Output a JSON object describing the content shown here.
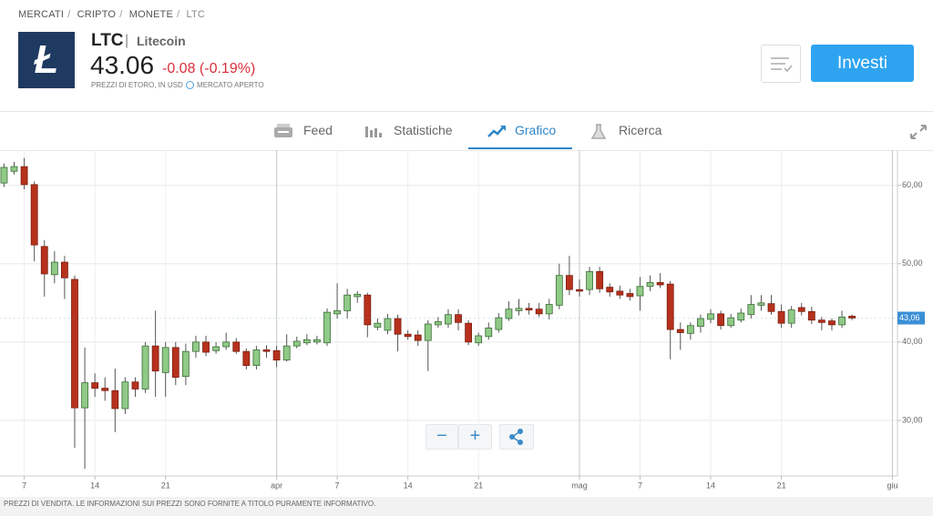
{
  "breadcrumb": {
    "items": [
      "MERCATI",
      "CRIPTO",
      "MONETE",
      "LTC"
    ],
    "separator": "/"
  },
  "instrument": {
    "symbol": "LTC",
    "separator": "|",
    "name": "Litecoin",
    "price": "43.06",
    "change": "-0.08 (-0.19%)",
    "source": "PREZZI DI ETORO, IN USD",
    "status": "MERCATO APERTO",
    "button": "Investi"
  },
  "tabs": [
    {
      "label": "Feed"
    },
    {
      "label": "Statistiche"
    },
    {
      "label": "Grafico",
      "active": true
    },
    {
      "label": "Ricerca"
    }
  ],
  "chart_data": {
    "type": "candlestick",
    "up_color": "#8fca86",
    "down_color": "#b7311c",
    "open": [
      60.3,
      61.8,
      62.4,
      60.1,
      52.2,
      48.6,
      50.2,
      48,
      31.6,
      34.8,
      34.1,
      33.8,
      31.5,
      34.9,
      34,
      39.5,
      36.1,
      39.3,
      35.6,
      38.8,
      40,
      38.9,
      39.4,
      40,
      38.8,
      37,
      39,
      38.9,
      37.7,
      39.5,
      39.9,
      40,
      39.9,
      43.6,
      44,
      45.8,
      46,
      41.9,
      41.5,
      43,
      41,
      40.9,
      40.2,
      42.2,
      42.3,
      43.5,
      42.4,
      39.9,
      40.7,
      41.6,
      43,
      44,
      44.3,
      44.2,
      43.6,
      44.7,
      48.5,
      46.7,
      46.7,
      49,
      47,
      46.5,
      46.2,
      45.9,
      47.1,
      47.6,
      47.4,
      41.6,
      41.1,
      42,
      42.9,
      43.6,
      42.1,
      42.8,
      43.5,
      44.7,
      44.9,
      43.9,
      42.4,
      44.4,
      43.9,
      42.8,
      42.7,
      42.2,
      43.3
    ],
    "high": [
      62.8,
      63,
      63.5,
      60.5,
      53,
      51.6,
      51,
      48.5,
      39.3,
      36,
      35.5,
      36.6,
      35.5,
      35.5,
      40,
      44,
      40,
      40,
      39.8,
      40.8,
      40.8,
      40,
      41.2,
      40.5,
      39.2,
      39.5,
      39.6,
      39.5,
      41,
      40.7,
      41,
      40.8,
      44.3,
      47.5,
      46.8,
      46.5,
      46.3,
      43,
      43.6,
      43.5,
      41.5,
      41.5,
      42.8,
      43.2,
      44.2,
      44.2,
      42.8,
      41.2,
      42.5,
      43.7,
      45.2,
      45.5,
      45,
      45,
      45.5,
      50,
      51,
      48,
      49.6,
      49.6,
      47.5,
      47.2,
      46.8,
      48.3,
      48.5,
      48.8,
      47.8,
      42.5,
      42.5,
      43.5,
      44.2,
      44,
      43.6,
      44.3,
      46,
      46,
      46,
      44.8,
      44.6,
      45,
      44.5,
      43.2,
      43,
      44,
      43.5
    ],
    "low": [
      59.8,
      61.4,
      59.5,
      50.3,
      45.8,
      47.5,
      45.5,
      26.5,
      23.8,
      33,
      32.5,
      28.5,
      30.8,
      33,
      33.5,
      33,
      33,
      34.5,
      34.5,
      38,
      38.2,
      38.5,
      39,
      38.5,
      36.5,
      36.5,
      38,
      36.8,
      37.5,
      39.2,
      39.6,
      39.7,
      39.5,
      43,
      43,
      45,
      40.6,
      41.5,
      41,
      38.8,
      40.3,
      39.5,
      36.3,
      41.8,
      41.8,
      41.5,
      39.6,
      39.5,
      40.3,
      41.2,
      42.7,
      43.4,
      43.5,
      43.2,
      42.9,
      44.2,
      46,
      45.8,
      46,
      46.3,
      45.8,
      45.5,
      45.3,
      44,
      46.5,
      46.9,
      37.8,
      39,
      40.3,
      41.2,
      42.4,
      41.6,
      41.8,
      42.5,
      43,
      44,
      43.5,
      41.8,
      41.8,
      43.4,
      42.3,
      41.5,
      41.5,
      41.8,
      42.8
    ],
    "close": [
      62.3,
      62.4,
      60.1,
      52.4,
      48.7,
      50.2,
      48.2,
      31.6,
      34.8,
      34.1,
      33.8,
      31.5,
      34.9,
      34,
      39.5,
      36.3,
      39.3,
      35.5,
      38.8,
      40,
      38.7,
      39.4,
      40,
      38.8,
      37,
      39,
      38.8,
      37.7,
      39.5,
      40.1,
      40.3,
      40.3,
      43.8,
      44,
      46,
      46.1,
      42.2,
      42.4,
      43,
      41,
      40.7,
      40.2,
      42.3,
      42.6,
      43.5,
      42.5,
      40,
      40.8,
      41.8,
      43.1,
      44.2,
      44.3,
      44.1,
      43.6,
      44.8,
      48.5,
      46.7,
      46.5,
      49,
      46.8,
      46.4,
      46,
      45.8,
      47.1,
      47.6,
      47.3,
      41.6,
      41.2,
      42.1,
      43,
      43.6,
      42.1,
      43.1,
      43.7,
      44.8,
      45,
      43.9,
      42.4,
      44.1,
      43.9,
      42.8,
      42.5,
      42.2,
      43.2,
      43.06
    ],
    "ylim": [
      22.9,
      64.5
    ],
    "yticks": [
      {
        "value": 30,
        "label": "30,00"
      },
      {
        "value": 40,
        "label": "40,00"
      },
      {
        "value": 50,
        "label": "50,00"
      },
      {
        "value": 60,
        "label": "60,00"
      }
    ],
    "xticks": [
      {
        "value": 2,
        "label": "7"
      },
      {
        "value": 9,
        "label": "14"
      },
      {
        "value": 16,
        "label": "21"
      },
      {
        "value": 27,
        "label": "apr"
      },
      {
        "value": 33,
        "label": "7"
      },
      {
        "value": 40,
        "label": "14"
      },
      {
        "value": 47,
        "label": "21"
      },
      {
        "value": 57,
        "label": "mag"
      },
      {
        "value": 63,
        "label": "7"
      },
      {
        "value": 70,
        "label": "14"
      },
      {
        "value": 77,
        "label": "21"
      },
      {
        "value": 88,
        "label": "giu"
      }
    ],
    "xlim": [
      -0.4,
      88.5
    ],
    "price_marker": {
      "value": 43.06,
      "label": "43,06"
    },
    "grid": true
  },
  "footer": "PREZZI DI VENDITA. LE INFORMAZIONI SUI PREZZI SONO FORNITE A TITOLO PURAMENTE INFORMATIVO."
}
